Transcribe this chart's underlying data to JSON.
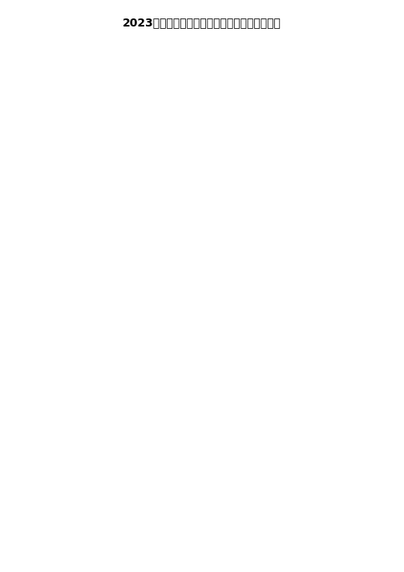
{
  "title": "2023届四川省成都高新区高三统一检测物理试卷",
  "bg": "#ffffff",
  "fg": "#000000",
  "figsize": [
    5.04,
    7.13
  ],
  "dpi": 100,
  "pink": "#e8317a",
  "blue_dash": "#6baed6",
  "wave_solid": "#e8317a",
  "wave_dash": "#6baed6",
  "plot_curve": "#e8317a",
  "plot_dash_curve": "#6baed6"
}
